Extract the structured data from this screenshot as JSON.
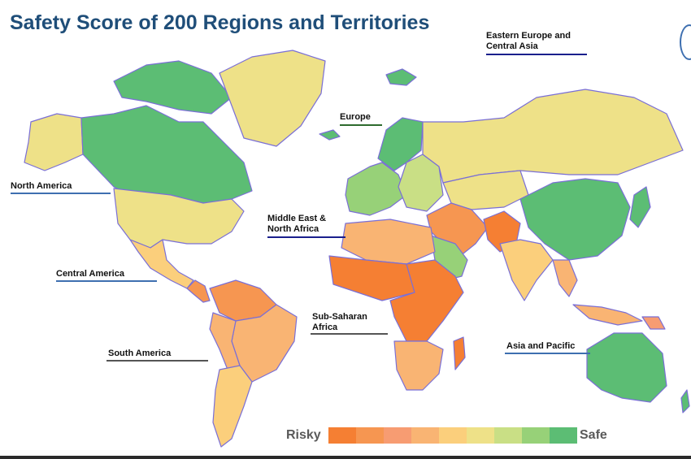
{
  "title": "Safety Score of 200 Regions and Territories",
  "regions": {
    "eastern_europe": "Eastern Europe and Central Asia",
    "europe": "Europe",
    "north_america": "North America",
    "mena": "Middle East & North Africa",
    "central_america": "Central America",
    "sub_saharan": "Sub-Saharan Africa",
    "south_america": "South America",
    "asia_pacific": "Asia and Pacific"
  },
  "legend": {
    "low_label": "Risky",
    "high_label": "Safe",
    "colors": [
      "#f57f33",
      "#f69651",
      "#f79c72",
      "#f9b473",
      "#fbcf7c",
      "#eee188",
      "#c9df85",
      "#97d178",
      "#5cbd74"
    ]
  },
  "colors": {
    "title": "#1f4e79",
    "underline_blue": "#3e6fb0",
    "underline_navy": "#1a1f8c",
    "underline_green": "#2e6b2e",
    "underline_gray": "#555555",
    "ocean_border": "#7a6fd6"
  }
}
